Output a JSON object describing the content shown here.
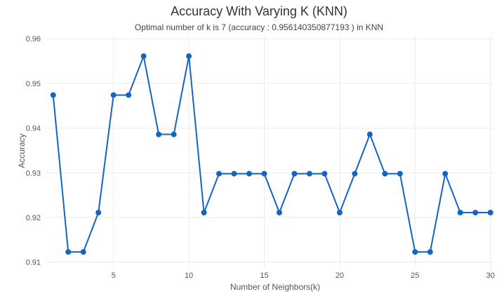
{
  "chart_data": {
    "type": "line",
    "title": "Accuracy With Varying K (KNN)",
    "subtitle": "Optimal number of k is 7 (accuracy : 0.956140350877193 ) in KNN",
    "xlabel": "Number of Neighbors(k)",
    "ylabel": "Accuracy",
    "xlim": [
      0.5,
      30.2
    ],
    "ylim": [
      0.9087,
      0.9605
    ],
    "xticks": [
      5,
      10,
      15,
      20,
      25,
      30
    ],
    "yticks": [
      0.91,
      0.92,
      0.93,
      0.94,
      0.95,
      0.96
    ],
    "ytick_labels": [
      "0.91",
      "0.92",
      "0.93",
      "0.94",
      "0.95",
      "0.96"
    ],
    "grid": true,
    "line_color": "#1565c0",
    "series": [
      {
        "x": [
          1,
          2,
          3,
          4,
          5,
          6,
          7,
          8,
          9,
          10,
          11,
          12,
          13,
          14,
          15,
          16,
          17,
          18,
          19,
          20,
          21,
          22,
          23,
          24,
          25,
          26,
          27,
          28,
          29,
          30
        ],
        "values": [
          0.9474,
          0.9123,
          0.9123,
          0.9211,
          0.9474,
          0.9474,
          0.9561,
          0.9386,
          0.9386,
          0.9561,
          0.9211,
          0.9298,
          0.9298,
          0.9298,
          0.9298,
          0.9211,
          0.9298,
          0.9298,
          0.9298,
          0.9211,
          0.9298,
          0.9386,
          0.9298,
          0.9298,
          0.9123,
          0.9123,
          0.9298,
          0.9211,
          0.9211,
          0.9211
        ]
      }
    ]
  }
}
